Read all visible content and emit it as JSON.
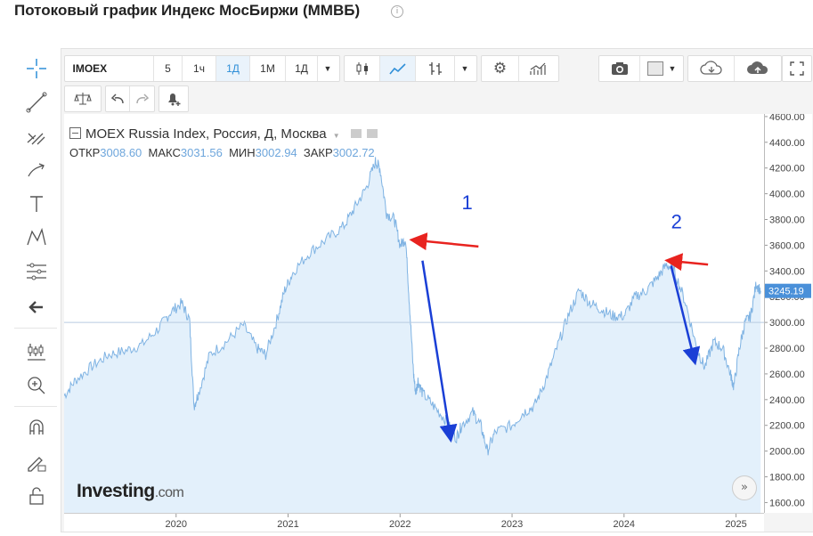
{
  "page": {
    "title": "Потоковый график Индекс МосБиржи (ММВБ)",
    "info_icon": "info-circle-icon"
  },
  "toolbar": {
    "symbol": "IMOEX",
    "intervals": [
      "5",
      "1ч",
      "1Д",
      "1М",
      "1Д"
    ],
    "active_interval": "1Д",
    "icons": [
      "candles-icon",
      "area-chart-icon",
      "bars-icon",
      "chevron-down-icon",
      "gear-icon",
      "indicators-icon",
      "camera-icon",
      "color-square-icon",
      "cloud-download-icon",
      "cloud-upload-icon",
      "fullscreen-icon",
      "scale-icon",
      "undo-icon",
      "redo-icon",
      "alert-bell-icon"
    ]
  },
  "left_tools": [
    "crosshair-icon",
    "trendline-icon",
    "pitchfork-icon",
    "brush-icon",
    "text-icon",
    "pattern-icon",
    "fib-icon",
    "back-arrow-icon",
    "candles-settings-icon",
    "zoom-icon",
    "magnet-icon",
    "lock-pencil-icon",
    "unlock-icon"
  ],
  "legend": {
    "name": "MOEX Russia Index, Россия, Д, Москва",
    "open_label": "ОТКР",
    "open": "3008.60",
    "high_label": "МАКС",
    "high": "3031.56",
    "low_label": "МИН",
    "low": "3002.94",
    "close_label": "ЗАКР",
    "close": "3002.72"
  },
  "logo": {
    "main": "Investing",
    "suffix": ".com"
  },
  "colors": {
    "line": "#7fb3e3",
    "fill": "#e3f0fb",
    "arrow_red": "#e8231f",
    "arrow_blue": "#1a3fd6",
    "label_blue": "#1a3fd6",
    "last_price_bg": "#4a90d9"
  },
  "chart_data": {
    "type": "area",
    "title": "MOEX Russia Index",
    "y_ticks": [
      "4600.00",
      "4400.00",
      "4200.00",
      "4000.00",
      "3800.00",
      "3600.00",
      "3400.00",
      "3200.00",
      "3000.00",
      "2800.00",
      "2600.00",
      "2400.00",
      "2200.00",
      "2000.00",
      "1800.00",
      "1600.00"
    ],
    "ylim": [
      1520,
      4620
    ],
    "x_ticks": [
      "2020",
      "2021",
      "2022",
      "2023",
      "2024",
      "2025"
    ],
    "xlim": [
      2019.0,
      2025.25
    ],
    "last_price": "3245.19",
    "crosshair_y": 3000,
    "series": [
      {
        "x": [
          2019.0,
          2019.1,
          2019.25,
          2019.4,
          2019.55,
          2019.7,
          2019.85,
          2019.95,
          2020.05,
          2020.12,
          2020.16,
          2020.2,
          2020.3,
          2020.45,
          2020.6,
          2020.72,
          2020.8,
          2020.9,
          2020.97,
          2021.05,
          2021.2,
          2021.35,
          2021.5,
          2021.6,
          2021.7,
          2021.78,
          2021.82,
          2021.88,
          2021.95,
          2022.0,
          2022.05,
          2022.08,
          2022.12,
          2022.14,
          2022.16,
          2022.2,
          2022.3,
          2022.4,
          2022.5,
          2022.55,
          2022.65,
          2022.72,
          2022.78,
          2022.85,
          2023.0,
          2023.1,
          2023.2,
          2023.3,
          2023.4,
          2023.5,
          2023.6,
          2023.7,
          2023.8,
          2023.9,
          2024.0,
          2024.1,
          2024.2,
          2024.3,
          2024.38,
          2024.45,
          2024.55,
          2024.65,
          2024.72,
          2024.8,
          2024.88,
          2024.95,
          2024.98,
          2025.03,
          2025.08,
          2025.13,
          2025.18,
          2025.22
        ],
        "y": [
          2430,
          2550,
          2660,
          2750,
          2780,
          2830,
          2960,
          3080,
          3150,
          3020,
          2350,
          2450,
          2750,
          2850,
          2980,
          2800,
          2750,
          3020,
          3250,
          3400,
          3550,
          3650,
          3750,
          3900,
          4050,
          4250,
          4200,
          3850,
          3800,
          3600,
          3650,
          3200,
          2600,
          2450,
          2550,
          2450,
          2350,
          2250,
          2100,
          2200,
          2300,
          2200,
          2000,
          2150,
          2200,
          2300,
          2350,
          2550,
          2800,
          3050,
          3250,
          3150,
          3100,
          3050,
          3050,
          3200,
          3250,
          3350,
          3450,
          3400,
          3150,
          2800,
          2650,
          2850,
          2800,
          2600,
          2500,
          2800,
          3000,
          3050,
          3300,
          3245
        ]
      }
    ],
    "annotations": [
      {
        "text": "1",
        "x": 2022.55,
        "y": 3880
      },
      {
        "text": "2",
        "x": 2024.42,
        "y": 3730
      }
    ],
    "arrows": [
      {
        "color": "red",
        "from": [
          2022.7,
          3590
        ],
        "to": [
          2022.12,
          3640
        ]
      },
      {
        "color": "blue",
        "from": [
          2022.2,
          3480
        ],
        "to": [
          2022.45,
          2100
        ]
      },
      {
        "color": "red",
        "from": [
          2024.75,
          3450
        ],
        "to": [
          2024.4,
          3480
        ]
      },
      {
        "color": "blue",
        "from": [
          2024.42,
          3440
        ],
        "to": [
          2024.63,
          2700
        ]
      }
    ]
  }
}
